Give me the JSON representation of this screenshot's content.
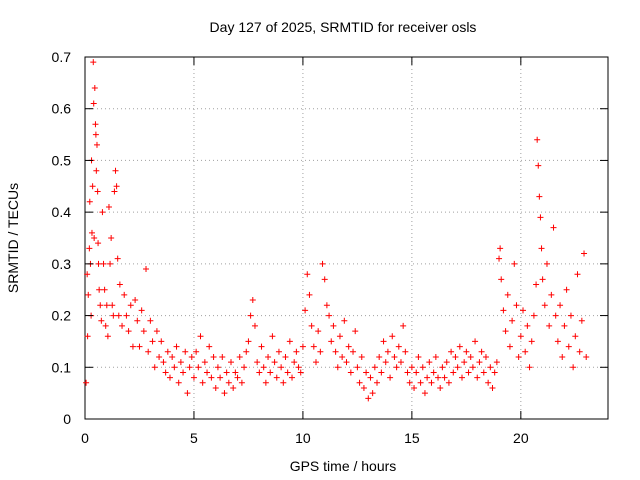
{
  "chart_data": {
    "type": "scatter",
    "title": "Day 127 of 2025, SRMTID for receiver osls",
    "xlabel": "GPS time / hours",
    "ylabel": "SRMTID / TECUs",
    "xlim": [
      0,
      24
    ],
    "ylim": [
      0,
      0.7
    ],
    "xticks": [
      {
        "value": 0,
        "label": "0"
      },
      {
        "value": 5,
        "label": "5"
      },
      {
        "value": 10,
        "label": "10"
      },
      {
        "value": 15,
        "label": "15"
      },
      {
        "value": 20,
        "label": "20"
      }
    ],
    "yticks": [
      {
        "value": 0,
        "label": "0"
      },
      {
        "value": 0.1,
        "label": "0.1"
      },
      {
        "value": 0.2,
        "label": "0.2"
      },
      {
        "value": 0.3,
        "label": "0.3"
      },
      {
        "value": 0.4,
        "label": "0.4"
      },
      {
        "value": 0.5,
        "label": "0.5"
      },
      {
        "value": 0.6,
        "label": "0.6"
      },
      {
        "value": 0.7,
        "label": "0.7"
      }
    ],
    "grid": true,
    "marker": "+",
    "color": "#ff0000",
    "series": [
      {
        "name": "SRMTID",
        "points": [
          [
            0.05,
            0.07
          ],
          [
            0.1,
            0.28
          ],
          [
            0.12,
            0.16
          ],
          [
            0.15,
            0.24
          ],
          [
            0.2,
            0.33
          ],
          [
            0.22,
            0.42
          ],
          [
            0.25,
            0.3
          ],
          [
            0.28,
            0.2
          ],
          [
            0.3,
            0.5
          ],
          [
            0.32,
            0.36
          ],
          [
            0.35,
            0.45
          ],
          [
            0.38,
            0.69
          ],
          [
            0.4,
            0.61
          ],
          [
            0.42,
            0.35
          ],
          [
            0.45,
            0.64
          ],
          [
            0.48,
            0.57
          ],
          [
            0.5,
            0.55
          ],
          [
            0.52,
            0.48
          ],
          [
            0.55,
            0.53
          ],
          [
            0.58,
            0.44
          ],
          [
            0.6,
            0.34
          ],
          [
            0.62,
            0.3
          ],
          [
            0.65,
            0.25
          ],
          [
            0.7,
            0.22
          ],
          [
            0.75,
            0.19
          ],
          [
            0.8,
            0.4
          ],
          [
            0.85,
            0.3
          ],
          [
            0.9,
            0.25
          ],
          [
            0.95,
            0.18
          ],
          [
            1.0,
            0.22
          ],
          [
            1.05,
            0.16
          ],
          [
            1.1,
            0.41
          ],
          [
            1.15,
            0.3
          ],
          [
            1.2,
            0.35
          ],
          [
            1.25,
            0.22
          ],
          [
            1.3,
            0.2
          ],
          [
            1.35,
            0.44
          ],
          [
            1.4,
            0.48
          ],
          [
            1.45,
            0.45
          ],
          [
            1.5,
            0.31
          ],
          [
            1.55,
            0.2
          ],
          [
            1.6,
            0.26
          ],
          [
            1.7,
            0.18
          ],
          [
            1.8,
            0.24
          ],
          [
            1.9,
            0.2
          ],
          [
            2.0,
            0.17
          ],
          [
            2.1,
            0.22
          ],
          [
            2.2,
            0.14
          ],
          [
            2.3,
            0.23
          ],
          [
            2.4,
            0.19
          ],
          [
            2.5,
            0.14
          ],
          [
            2.6,
            0.21
          ],
          [
            2.7,
            0.17
          ],
          [
            2.8,
            0.29
          ],
          [
            2.9,
            0.13
          ],
          [
            3.0,
            0.19
          ],
          [
            3.1,
            0.15
          ],
          [
            3.2,
            0.1
          ],
          [
            3.3,
            0.17
          ],
          [
            3.4,
            0.12
          ],
          [
            3.5,
            0.15
          ],
          [
            3.6,
            0.11
          ],
          [
            3.7,
            0.09
          ],
          [
            3.8,
            0.13
          ],
          [
            3.9,
            0.08
          ],
          [
            4.0,
            0.12
          ],
          [
            4.1,
            0.1
          ],
          [
            4.2,
            0.14
          ],
          [
            4.3,
            0.07
          ],
          [
            4.4,
            0.11
          ],
          [
            4.5,
            0.09
          ],
          [
            4.6,
            0.13
          ],
          [
            4.7,
            0.05
          ],
          [
            4.8,
            0.1
          ],
          [
            4.9,
            0.12
          ],
          [
            5.0,
            0.08
          ],
          [
            5.1,
            0.13
          ],
          [
            5.2,
            0.1
          ],
          [
            5.3,
            0.16
          ],
          [
            5.4,
            0.07
          ],
          [
            5.5,
            0.11
          ],
          [
            5.6,
            0.09
          ],
          [
            5.7,
            0.14
          ],
          [
            5.8,
            0.08
          ],
          [
            5.9,
            0.12
          ],
          [
            6.0,
            0.06
          ],
          [
            6.1,
            0.1
          ],
          [
            6.2,
            0.08
          ],
          [
            6.3,
            0.12
          ],
          [
            6.4,
            0.05
          ],
          [
            6.5,
            0.09
          ],
          [
            6.6,
            0.07
          ],
          [
            6.7,
            0.11
          ],
          [
            6.8,
            0.06
          ],
          [
            6.9,
            0.09
          ],
          [
            7.0,
            0.08
          ],
          [
            7.1,
            0.12
          ],
          [
            7.2,
            0.07
          ],
          [
            7.3,
            0.1
          ],
          [
            7.4,
            0.13
          ],
          [
            7.5,
            0.15
          ],
          [
            7.6,
            0.2
          ],
          [
            7.7,
            0.23
          ],
          [
            7.8,
            0.18
          ],
          [
            7.9,
            0.11
          ],
          [
            8.0,
            0.09
          ],
          [
            8.1,
            0.14
          ],
          [
            8.2,
            0.1
          ],
          [
            8.3,
            0.07
          ],
          [
            8.4,
            0.12
          ],
          [
            8.5,
            0.09
          ],
          [
            8.6,
            0.16
          ],
          [
            8.7,
            0.11
          ],
          [
            8.8,
            0.08
          ],
          [
            8.9,
            0.13
          ],
          [
            9.0,
            0.1
          ],
          [
            9.1,
            0.07
          ],
          [
            9.2,
            0.12
          ],
          [
            9.3,
            0.09
          ],
          [
            9.4,
            0.15
          ],
          [
            9.5,
            0.08
          ],
          [
            9.6,
            0.11
          ],
          [
            9.7,
            0.13
          ],
          [
            9.8,
            0.1
          ],
          [
            9.9,
            0.09
          ],
          [
            10.0,
            0.14
          ],
          [
            10.1,
            0.21
          ],
          [
            10.2,
            0.28
          ],
          [
            10.3,
            0.24
          ],
          [
            10.4,
            0.18
          ],
          [
            10.5,
            0.14
          ],
          [
            10.6,
            0.11
          ],
          [
            10.7,
            0.17
          ],
          [
            10.8,
            0.13
          ],
          [
            10.9,
            0.3
          ],
          [
            11.0,
            0.27
          ],
          [
            11.1,
            0.22
          ],
          [
            11.2,
            0.2
          ],
          [
            11.3,
            0.15
          ],
          [
            11.4,
            0.18
          ],
          [
            11.5,
            0.13
          ],
          [
            11.6,
            0.1
          ],
          [
            11.7,
            0.16
          ],
          [
            11.8,
            0.12
          ],
          [
            11.9,
            0.19
          ],
          [
            12.0,
            0.11
          ],
          [
            12.1,
            0.14
          ],
          [
            12.2,
            0.09
          ],
          [
            12.3,
            0.13
          ],
          [
            12.4,
            0.17
          ],
          [
            12.5,
            0.1
          ],
          [
            12.6,
            0.07
          ],
          [
            12.7,
            0.12
          ],
          [
            12.8,
            0.06
          ],
          [
            12.9,
            0.09
          ],
          [
            13.0,
            0.04
          ],
          [
            13.1,
            0.08
          ],
          [
            13.2,
            0.05
          ],
          [
            13.3,
            0.1
          ],
          [
            13.4,
            0.07
          ],
          [
            13.5,
            0.12
          ],
          [
            13.6,
            0.09
          ],
          [
            13.7,
            0.15
          ],
          [
            13.8,
            0.11
          ],
          [
            13.9,
            0.13
          ],
          [
            14.0,
            0.08
          ],
          [
            14.1,
            0.16
          ],
          [
            14.2,
            0.12
          ],
          [
            14.3,
            0.1
          ],
          [
            14.4,
            0.14
          ],
          [
            14.5,
            0.11
          ],
          [
            14.6,
            0.18
          ],
          [
            14.7,
            0.13
          ],
          [
            14.8,
            0.09
          ],
          [
            14.9,
            0.07
          ],
          [
            15.0,
            0.1
          ],
          [
            15.1,
            0.06
          ],
          [
            15.2,
            0.09
          ],
          [
            15.3,
            0.12
          ],
          [
            15.4,
            0.07
          ],
          [
            15.5,
            0.1
          ],
          [
            15.6,
            0.05
          ],
          [
            15.7,
            0.08
          ],
          [
            15.8,
            0.11
          ],
          [
            15.9,
            0.07
          ],
          [
            16.0,
            0.09
          ],
          [
            16.1,
            0.12
          ],
          [
            16.2,
            0.08
          ],
          [
            16.3,
            0.06
          ],
          [
            16.4,
            0.1
          ],
          [
            16.5,
            0.08
          ],
          [
            16.6,
            0.11
          ],
          [
            16.7,
            0.07
          ],
          [
            16.8,
            0.13
          ],
          [
            16.9,
            0.09
          ],
          [
            17.0,
            0.12
          ],
          [
            17.1,
            0.1
          ],
          [
            17.2,
            0.14
          ],
          [
            17.3,
            0.08
          ],
          [
            17.4,
            0.11
          ],
          [
            17.5,
            0.13
          ],
          [
            17.6,
            0.09
          ],
          [
            17.7,
            0.12
          ],
          [
            17.8,
            0.1
          ],
          [
            17.9,
            0.15
          ],
          [
            18.0,
            0.08
          ],
          [
            18.1,
            0.11
          ],
          [
            18.2,
            0.13
          ],
          [
            18.3,
            0.09
          ],
          [
            18.4,
            0.12
          ],
          [
            18.5,
            0.07
          ],
          [
            18.6,
            0.1
          ],
          [
            18.7,
            0.06
          ],
          [
            18.8,
            0.09
          ],
          [
            18.9,
            0.11
          ],
          [
            19.0,
            0.31
          ],
          [
            19.05,
            0.33
          ],
          [
            19.1,
            0.27
          ],
          [
            19.2,
            0.21
          ],
          [
            19.3,
            0.17
          ],
          [
            19.4,
            0.24
          ],
          [
            19.5,
            0.14
          ],
          [
            19.6,
            0.19
          ],
          [
            19.7,
            0.3
          ],
          [
            19.8,
            0.22
          ],
          [
            19.9,
            0.12
          ],
          [
            20.0,
            0.16
          ],
          [
            20.1,
            0.21
          ],
          [
            20.2,
            0.13
          ],
          [
            20.3,
            0.18
          ],
          [
            20.4,
            0.1
          ],
          [
            20.5,
            0.15
          ],
          [
            20.6,
            0.2
          ],
          [
            20.7,
            0.26
          ],
          [
            20.75,
            0.54
          ],
          [
            20.8,
            0.49
          ],
          [
            20.85,
            0.43
          ],
          [
            20.9,
            0.39
          ],
          [
            20.95,
            0.33
          ],
          [
            21.0,
            0.27
          ],
          [
            21.1,
            0.22
          ],
          [
            21.2,
            0.3
          ],
          [
            21.3,
            0.18
          ],
          [
            21.4,
            0.24
          ],
          [
            21.5,
            0.37
          ],
          [
            21.6,
            0.2
          ],
          [
            21.7,
            0.15
          ],
          [
            21.8,
            0.22
          ],
          [
            21.9,
            0.12
          ],
          [
            22.0,
            0.18
          ],
          [
            22.1,
            0.25
          ],
          [
            22.2,
            0.14
          ],
          [
            22.3,
            0.2
          ],
          [
            22.4,
            0.1
          ],
          [
            22.5,
            0.16
          ],
          [
            22.6,
            0.28
          ],
          [
            22.7,
            0.13
          ],
          [
            22.8,
            0.19
          ],
          [
            22.9,
            0.32
          ],
          [
            23.0,
            0.12
          ]
        ]
      }
    ]
  }
}
